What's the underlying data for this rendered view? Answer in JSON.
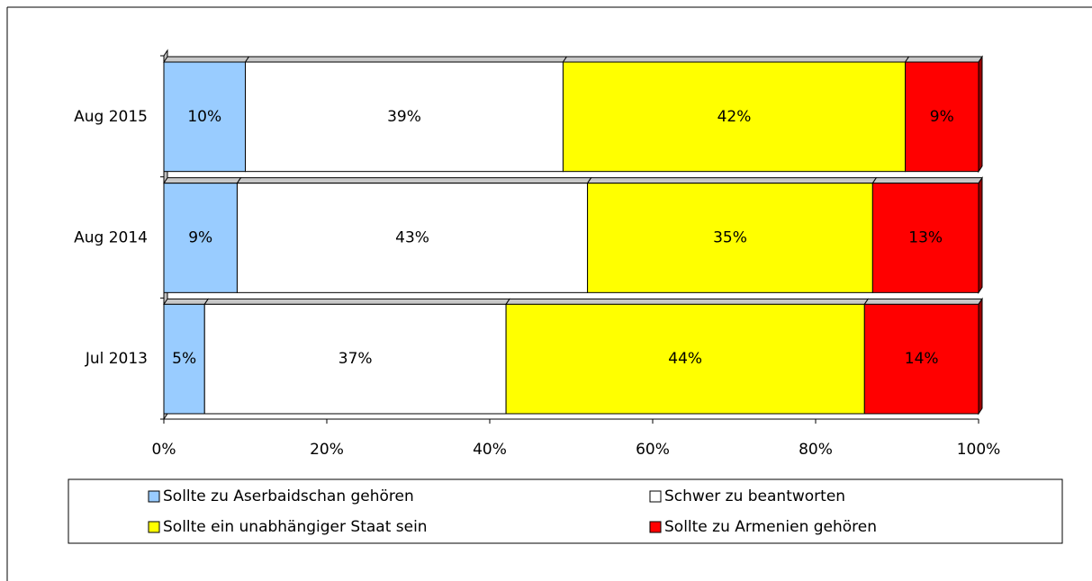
{
  "chart_data": {
    "type": "stacked-barh",
    "categories": [
      "Aug 2015",
      "Aug 2014",
      "Jul 2013"
    ],
    "series": [
      {
        "name": "Sollte zu Aserbaidschan gehören",
        "color": "#99ccff",
        "values": [
          10,
          9,
          5
        ],
        "value_labels": [
          "10%",
          "9%",
          "5%"
        ]
      },
      {
        "name": "Schwer zu beantworten",
        "color": "#ffffff",
        "values": [
          39,
          43,
          37
        ],
        "value_labels": [
          "39%",
          "43%",
          "37%"
        ]
      },
      {
        "name": "Sollte ein unabhängiger Staat sein",
        "color": "#ffff00",
        "values": [
          42,
          35,
          44
        ],
        "value_labels": [
          "42%",
          "35%",
          "44%"
        ]
      },
      {
        "name": "Sollte zu Armenien gehören",
        "color": "#ff0000",
        "values": [
          9,
          13,
          14
        ],
        "value_labels": [
          "9%",
          "13%",
          "14%"
        ]
      }
    ],
    "xlim": [
      0,
      100
    ],
    "xticks": [
      {
        "value": 0,
        "label": "0%"
      },
      {
        "value": 20,
        "label": "20%"
      },
      {
        "value": 40,
        "label": "40%"
      },
      {
        "value": 60,
        "label": "60%"
      },
      {
        "value": 80,
        "label": "80%"
      },
      {
        "value": 100,
        "label": "100%"
      }
    ],
    "legend": "bottom"
  }
}
